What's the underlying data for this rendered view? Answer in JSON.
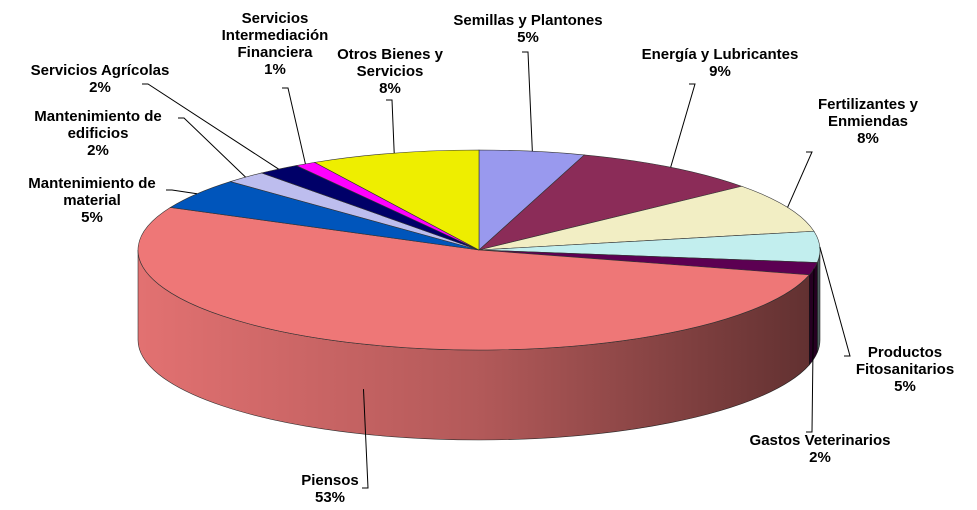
{
  "chart_data": {
    "type": "pie3d",
    "categories": [
      "Semillas y Plantones",
      "Energía y Lubricantes",
      "Fertilizantes y Enmiendas",
      "Productos Fitosanitarios",
      "Gastos Veterinarios",
      "Piensos",
      "Mantenimiento de material",
      "Mantenimiento de edificios",
      "Servicios Agrícolas",
      "Servicios Intermediación Financiera",
      "Otros Bienes y Servicios"
    ],
    "values": [
      5,
      9,
      8,
      5,
      2,
      53,
      5,
      2,
      2,
      1,
      8
    ],
    "value_labels": [
      "5%",
      "9%",
      "8%",
      "5%",
      "2%",
      "53%",
      "5%",
      "2%",
      "2%",
      "1%",
      "8%"
    ],
    "colors": [
      "#9999ee",
      "#8b2c58",
      "#f2eec4",
      "#c2eeee",
      "#5c0052",
      "#ee7777",
      "#0055bb",
      "#bdbdee",
      "#000068",
      "#ff00ff",
      "#eeee00"
    ]
  }
}
